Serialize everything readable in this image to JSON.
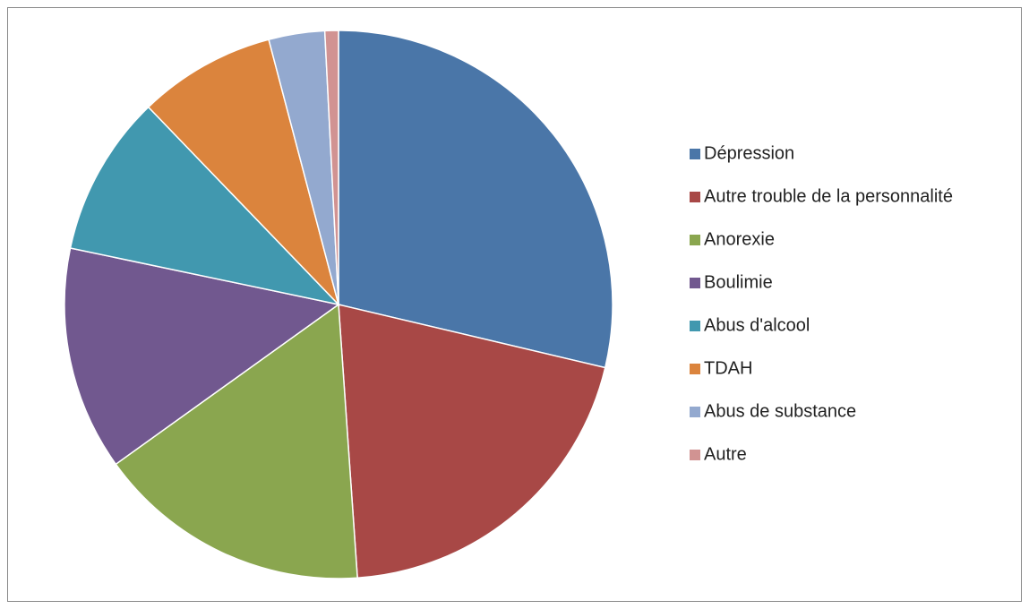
{
  "chart_data": {
    "type": "pie",
    "categories": [
      "Dépression",
      "Autre trouble de la personnalité",
      "Anorexie",
      "Boulimie",
      "Abus d'alcool",
      "TDAH",
      "Abus de substance",
      "Autre"
    ],
    "values": [
      28.7,
      20.2,
      16.2,
      13.2,
      9.5,
      8.1,
      3.3,
      0.8
    ],
    "colors": [
      "#4a76a8",
      "#a84846",
      "#8aa64f",
      "#71588f",
      "#4198af",
      "#db843d",
      "#93a9cf",
      "#d19392"
    ],
    "legend": "right"
  }
}
